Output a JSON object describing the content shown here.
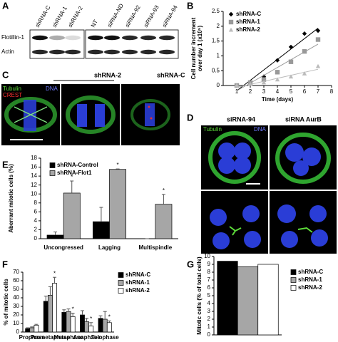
{
  "panel_labels": [
    "A",
    "B",
    "C",
    "D",
    "E",
    "F",
    "G"
  ],
  "blot": {
    "lanes": [
      "shRNA-C",
      "shRNA-1",
      "shRNA-2",
      "NT",
      "siRNA-ND",
      "siRNA-92",
      "siRNA-93",
      "siRNA-94"
    ],
    "rows": [
      "Flotillin-1",
      "Actin"
    ]
  },
  "images_c": {
    "groups": [
      "shRNA-2",
      "shRNA-C"
    ],
    "stains": [
      "Tubulin",
      "DNA",
      "CREST"
    ]
  },
  "images_d": {
    "columns": [
      "siRNA-94",
      "siRNA AurB"
    ],
    "stains": [
      "Tubulin",
      "DNA"
    ]
  },
  "chart_data": [
    {
      "type": "scatter",
      "trendline": true,
      "legend": "upper left",
      "xlabel": "Time (days)",
      "ylabel": [
        "Cell number increment",
        "over day 1 (x10⁵)"
      ],
      "x": [
        1,
        2,
        3,
        4,
        5,
        6,
        7
      ],
      "series": [
        {
          "name": "shRNA-C",
          "color": "#000000",
          "marker": "diamond",
          "values": [
            0,
            0.1,
            0.3,
            0.85,
            1.3,
            1.75,
            1.85
          ]
        },
        {
          "name": "shRNA-1",
          "color": "#999999",
          "marker": "square",
          "values": [
            0,
            0.1,
            0.2,
            0.45,
            0.8,
            1.15,
            1.55
          ]
        },
        {
          "name": "shRNA-2",
          "color": "#bbbbbb",
          "marker": "triangle",
          "values": [
            0,
            0.05,
            0.1,
            0.2,
            0.3,
            0.4,
            0.65
          ]
        }
      ],
      "xlim": [
        0,
        8
      ],
      "xticks": [
        1,
        2,
        3,
        4,
        5,
        6,
        7,
        8
      ],
      "ylim": [
        0,
        2.5
      ],
      "yticks": [
        0,
        0.5,
        1,
        1.5,
        2,
        2.5
      ]
    },
    {
      "type": "bar",
      "legend": "upper left",
      "ylabel": "Aberrant mitotic cells (%)",
      "categories": [
        "Uncongressed",
        "Lagging",
        "Multispindle"
      ],
      "series": [
        {
          "name": "shRNA-Control",
          "color": "#000000",
          "values": [
            0.8,
            3.8,
            0
          ],
          "errors": [
            0.7,
            3.2,
            0
          ]
        },
        {
          "name": "shRNA-Flot1",
          "color": "#a6a6a6",
          "values": [
            10.2,
            15.5,
            7.7
          ],
          "errors": [
            2.7,
            0.1,
            2.2
          ],
          "significance": [
            "*",
            "*",
            "*"
          ]
        }
      ],
      "ylim": [
        0,
        18
      ],
      "yticks": [
        0,
        2,
        4,
        6,
        8,
        10,
        12,
        14,
        16,
        18
      ]
    },
    {
      "type": "bar",
      "legend": "right",
      "ylabel": "% of mitotic cells",
      "categories": [
        "Prophase",
        "Prometaphase",
        "Metaphase",
        "Anaphase",
        "Telophase"
      ],
      "series": [
        {
          "name": "shRNA-C",
          "color": "#000000",
          "values": [
            4,
            36,
            23,
            20,
            16
          ],
          "errors": [
            1,
            6,
            3,
            5,
            3
          ]
        },
        {
          "name": "shRNA-1",
          "color": "#a6a6a6",
          "values": [
            5,
            43,
            24,
            12,
            15
          ],
          "errors": [
            1,
            10,
            3,
            4,
            9
          ]
        },
        {
          "name": "shRNA-2",
          "color": "#ffffff",
          "values": [
            8,
            57,
            18,
            7,
            11
          ],
          "errors": [
            1,
            7,
            4,
            4,
            2
          ],
          "significance": [
            null,
            "*",
            "*",
            "*",
            "*"
          ]
        }
      ],
      "ylim": [
        0,
        70
      ],
      "yticks": [
        0,
        10,
        20,
        30,
        40,
        50,
        60,
        70
      ]
    },
    {
      "type": "bar",
      "legend": "right",
      "ylabel": "Mitotic cells (% of total cells)",
      "series": [
        {
          "name": "shRNA-C",
          "color": "#000000",
          "values": [
            9.4
          ]
        },
        {
          "name": "shRNA-1",
          "color": "#a6a6a6",
          "values": [
            8.7
          ]
        },
        {
          "name": "shRNA-2",
          "color": "#ffffff",
          "values": [
            9.0
          ]
        }
      ],
      "ylim": [
        0,
        10
      ],
      "yticks": [
        0,
        1,
        2,
        3,
        4,
        5,
        6,
        7,
        8,
        9,
        10
      ]
    }
  ]
}
